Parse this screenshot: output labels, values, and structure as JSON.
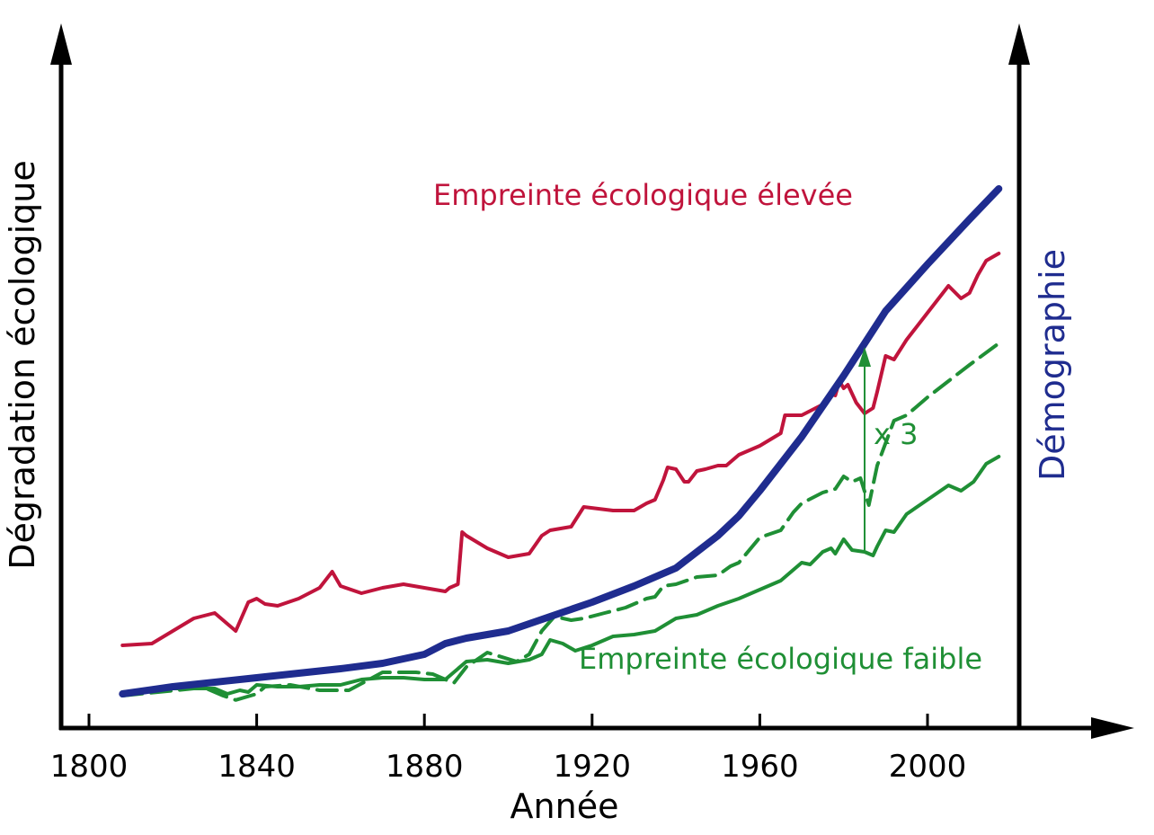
{
  "chart_data": {
    "type": "line",
    "title": "",
    "xlabel": "Année",
    "ylabel_left": "Dégradation écologique",
    "ylabel_right": "Démographie",
    "xlim": [
      1793,
      2045
    ],
    "x_ticks": [
      1800,
      1840,
      1880,
      1920,
      1960,
      2000
    ],
    "y_scale": "relative (no tick values shown)",
    "grid": false,
    "legend": "none (series labelled directly on the chart)",
    "series": [
      {
        "name": "Empreinte écologique élevée",
        "color": "#c0143c",
        "style": "solid",
        "x": [
          1808,
          1815,
          1820,
          1825,
          1830,
          1833,
          1835,
          1838,
          1840,
          1842,
          1845,
          1850,
          1855,
          1858,
          1860,
          1865,
          1870,
          1875,
          1880,
          1885,
          1886,
          1888,
          1889,
          1890,
          1895,
          1900,
          1905,
          1908,
          1910,
          1915,
          1918,
          1925,
          1930,
          1933,
          1935,
          1937,
          1938,
          1940,
          1942,
          1943,
          1945,
          1947,
          1950,
          1952,
          1955,
          1960,
          1965,
          1966,
          1970,
          1975,
          1977,
          1978,
          1979,
          1980,
          1981,
          1983,
          1985,
          1987,
          1988,
          1990,
          1992,
          1995,
          2000,
          2005,
          2008,
          2010,
          2012,
          2014,
          2017
        ],
        "y": [
          2.3,
          2.35,
          2.7,
          3.05,
          3.2,
          2.9,
          2.7,
          3.5,
          3.6,
          3.45,
          3.4,
          3.6,
          3.9,
          4.35,
          3.95,
          3.75,
          3.9,
          4.0,
          3.9,
          3.8,
          3.9,
          4.0,
          5.45,
          5.35,
          5.0,
          4.75,
          4.85,
          5.35,
          5.5,
          5.6,
          6.15,
          6.05,
          6.05,
          6.25,
          6.35,
          6.9,
          7.25,
          7.2,
          6.85,
          6.85,
          7.15,
          7.2,
          7.3,
          7.3,
          7.6,
          7.85,
          8.2,
          8.7,
          8.7,
          9.0,
          9.3,
          9.25,
          9.65,
          9.45,
          9.55,
          9.05,
          8.75,
          8.9,
          9.35,
          10.35,
          10.25,
          10.8,
          11.55,
          12.3,
          11.95,
          12.1,
          12.6,
          13.0,
          13.2
        ]
      },
      {
        "name": "Démographie",
        "color": "#1f2c8f",
        "style": "thick solid",
        "x": [
          1808,
          1820,
          1840,
          1860,
          1870,
          1880,
          1885,
          1890,
          1900,
          1910,
          1920,
          1930,
          1940,
          1950,
          1955,
          1960,
          1970,
          1980,
          1990,
          2000,
          2010,
          2017
        ],
        "y": [
          0.95,
          1.15,
          1.4,
          1.65,
          1.8,
          2.05,
          2.35,
          2.5,
          2.7,
          3.1,
          3.5,
          3.95,
          4.45,
          5.35,
          5.9,
          6.6,
          8.1,
          9.8,
          11.6,
          12.9,
          14.15,
          15.0
        ]
      },
      {
        "name": "",
        "color": "#1f8f35",
        "style": "dashed",
        "x": [
          1808,
          1825,
          1828,
          1832,
          1835,
          1840,
          1842,
          1848,
          1855,
          1862,
          1870,
          1878,
          1882,
          1887,
          1890,
          1895,
          1902,
          1905,
          1908,
          1911,
          1915,
          1918,
          1923,
          1928,
          1933,
          1935,
          1937,
          1940,
          1945,
          1950,
          1953,
          1955,
          1960,
          1965,
          1968,
          1970,
          1975,
          1978,
          1980,
          1982,
          1984,
          1986,
          1988,
          1992,
          1995,
          2000,
          2005,
          2010,
          2017
        ],
        "y": [
          0.9,
          1.1,
          1.1,
          0.9,
          0.78,
          0.95,
          1.15,
          1.2,
          1.05,
          1.05,
          1.55,
          1.55,
          1.5,
          1.25,
          1.7,
          2.1,
          1.85,
          2.05,
          2.7,
          3.1,
          3.0,
          3.05,
          3.2,
          3.35,
          3.6,
          3.65,
          3.95,
          4.0,
          4.2,
          4.25,
          4.5,
          4.6,
          5.3,
          5.5,
          6.0,
          6.25,
          6.55,
          6.65,
          7.0,
          6.85,
          6.95,
          6.2,
          7.3,
          8.55,
          8.7,
          9.2,
          9.65,
          10.1,
          10.7
        ]
      },
      {
        "name": "Empreinte écologique faible",
        "color": "#1f8f35",
        "style": "solid",
        "x": [
          1808,
          1820,
          1830,
          1833,
          1836,
          1838,
          1840,
          1845,
          1850,
          1855,
          1860,
          1865,
          1870,
          1875,
          1880,
          1885,
          1890,
          1895,
          1900,
          1905,
          1908,
          1910,
          1913,
          1916,
          1920,
          1925,
          1930,
          1935,
          1940,
          1945,
          1950,
          1955,
          1960,
          1965,
          1970,
          1972,
          1975,
          1977,
          1978,
          1980,
          1982,
          1985,
          1987,
          1988,
          1990,
          1992,
          1995,
          2000,
          2005,
          2008,
          2011,
          2014,
          2017
        ],
        "y": [
          1.0,
          1.1,
          1.1,
          0.95,
          1.05,
          1.0,
          1.2,
          1.15,
          1.15,
          1.2,
          1.2,
          1.35,
          1.4,
          1.4,
          1.35,
          1.35,
          1.85,
          1.9,
          1.8,
          1.9,
          2.05,
          2.45,
          2.35,
          2.15,
          2.3,
          2.55,
          2.6,
          2.7,
          3.05,
          3.15,
          3.4,
          3.6,
          3.85,
          4.1,
          4.6,
          4.55,
          4.9,
          5.0,
          4.85,
          5.25,
          4.95,
          4.9,
          4.8,
          5.05,
          5.5,
          5.45,
          5.95,
          6.35,
          6.75,
          6.6,
          6.85,
          7.35,
          7.55
        ]
      }
    ],
    "annotations": [
      {
        "text": "x 3",
        "kind": "arrow",
        "x": 1985,
        "from_series": "Empreinte écologique faible",
        "to_series": "dashed green"
      }
    ]
  }
}
